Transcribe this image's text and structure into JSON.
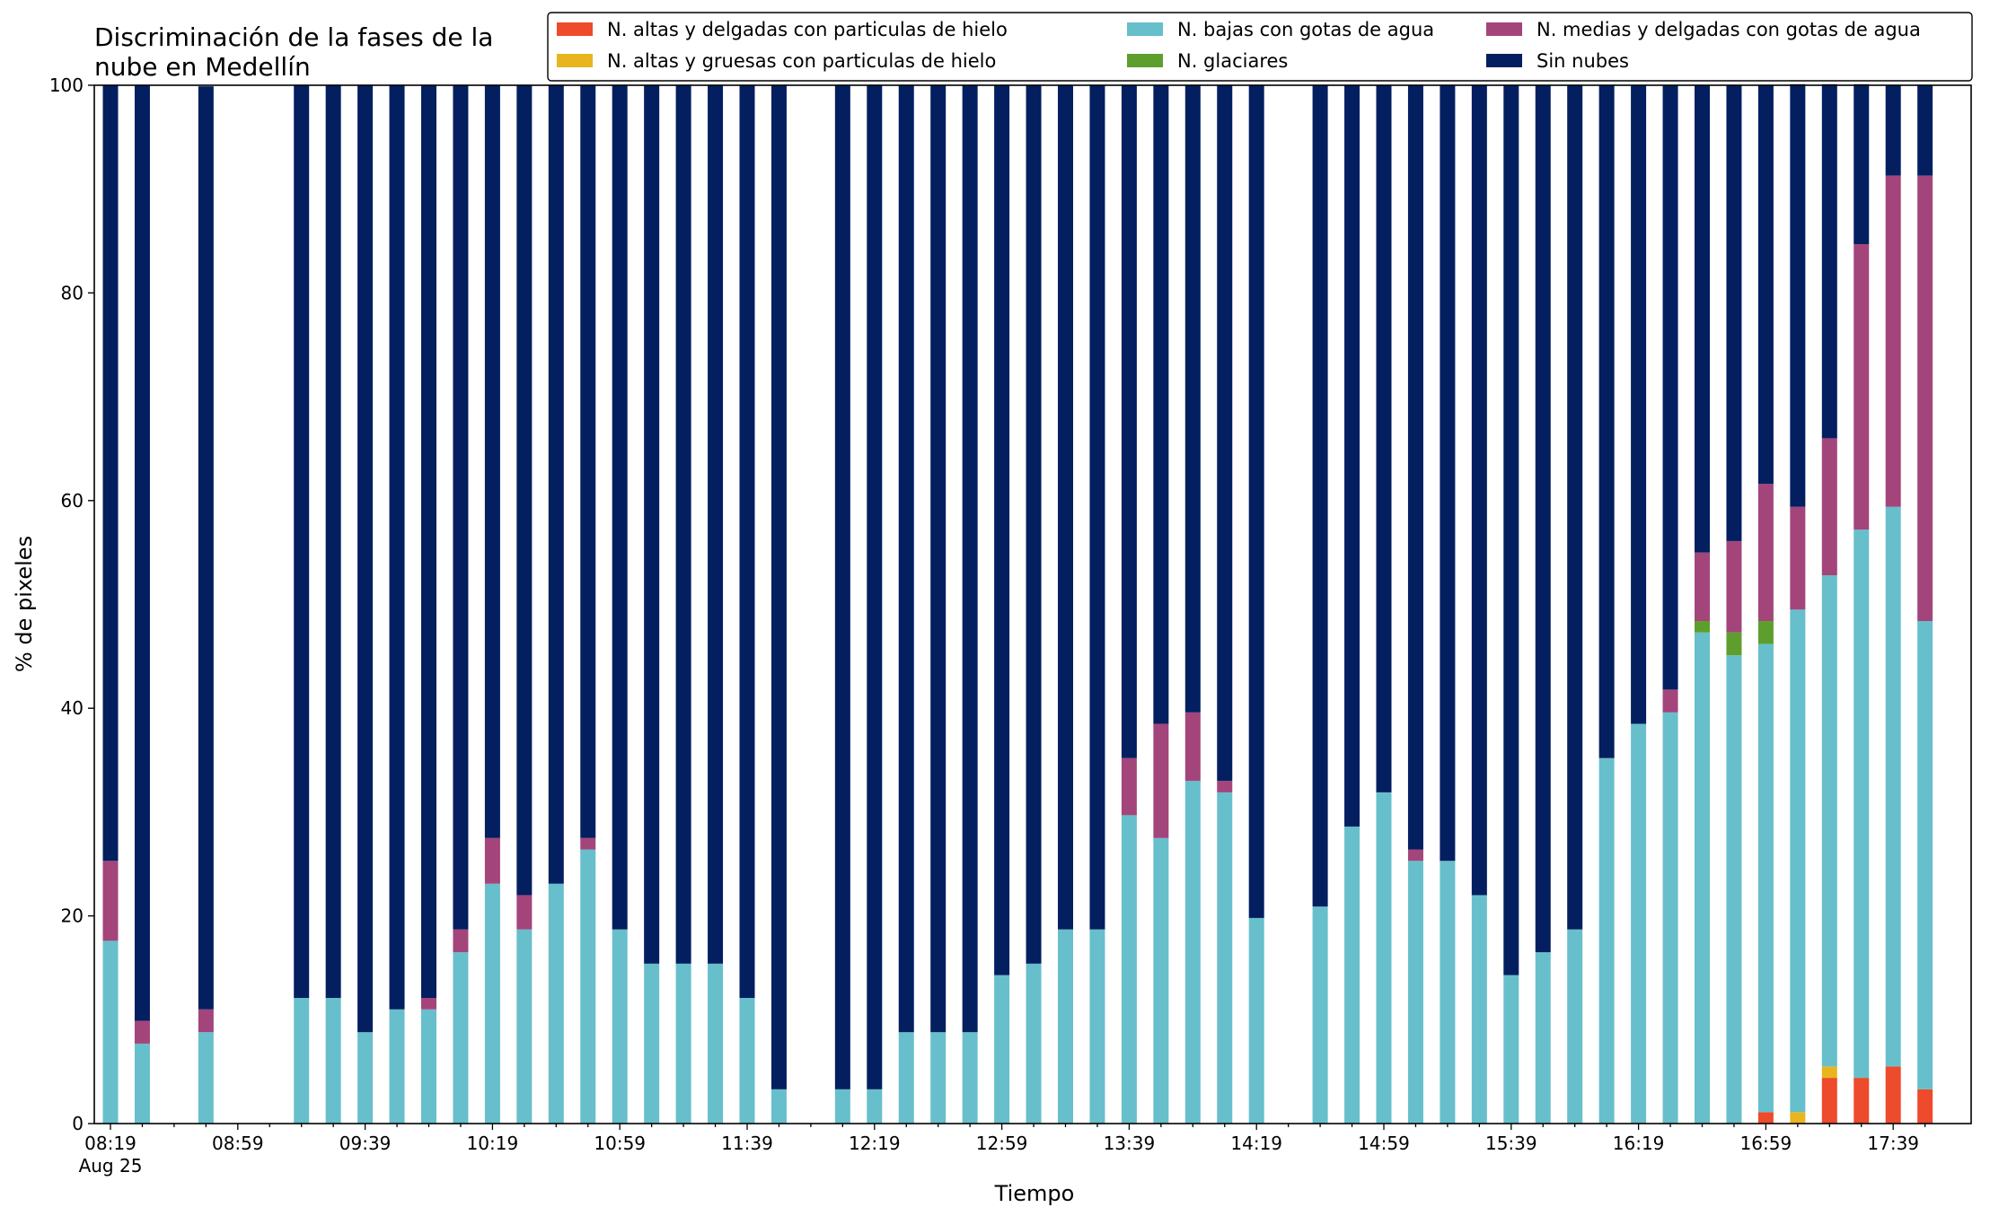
{
  "chart_data": {
    "type": "bar",
    "stacked": true,
    "title_lines": [
      "Discriminación de la fases de la",
      "nube en Medellín"
    ],
    "xlabel": "Tiempo",
    "ylabel": "% de pixeles",
    "ylim": [
      0,
      100
    ],
    "yticks": [
      "0",
      "20",
      "40",
      "60",
      "80",
      "100"
    ],
    "xtick_labels": [
      "08:19",
      "08:59",
      "09:39",
      "10:19",
      "10:59",
      "11:39",
      "12:19",
      "12:59",
      "13:39",
      "14:19",
      "14:59",
      "15:39",
      "16:19",
      "16:59",
      "17:39"
    ],
    "xtick_sub": "Aug 25",
    "grid": false,
    "legend_position": "top",
    "categories": [
      "08:19",
      "08:29",
      "08:39",
      "08:49",
      "08:59",
      "09:09",
      "09:19",
      "09:29",
      "09:39",
      "09:49",
      "09:59",
      "10:09",
      "10:19",
      "10:29",
      "10:39",
      "10:49",
      "10:59",
      "11:09",
      "11:19",
      "11:29",
      "11:39",
      "11:49",
      "11:59",
      "12:09",
      "12:19",
      "12:29",
      "12:39",
      "12:49",
      "12:59",
      "13:09",
      "13:19",
      "13:29",
      "13:39",
      "13:49",
      "13:59",
      "14:09",
      "14:19",
      "14:29",
      "14:39",
      "14:49",
      "14:59",
      "15:09",
      "15:19",
      "15:29",
      "15:39",
      "15:49",
      "15:59",
      "16:09",
      "16:19",
      "16:29",
      "16:39",
      "16:49",
      "16:59",
      "17:09",
      "17:19",
      "17:29",
      "17:39",
      "17:49"
    ],
    "series": [
      {
        "name": "N. altas y delgadas con particulas de hielo",
        "color": "#ee4a2c",
        "values": [
          0,
          0,
          null,
          0,
          null,
          null,
          0,
          0,
          0,
          0,
          0,
          0,
          0,
          0,
          0,
          0,
          0,
          0,
          0,
          0,
          0,
          0,
          null,
          0,
          0,
          0,
          0,
          0,
          0,
          0,
          0,
          0,
          0,
          0,
          0,
          0,
          0,
          null,
          0,
          0,
          0,
          0,
          0,
          0,
          0,
          0,
          0,
          0,
          0,
          0,
          0,
          0,
          1.1,
          0,
          4.4,
          4.4,
          5.5,
          3.3
        ]
      },
      {
        "name": "N. altas y gruesas con particulas de hielo",
        "color": "#e8b51f",
        "values": [
          0,
          0,
          null,
          0,
          null,
          null,
          0,
          0,
          0,
          0,
          0,
          0,
          0,
          0,
          0,
          0,
          0,
          0,
          0,
          0,
          0,
          0,
          null,
          0,
          0,
          0,
          0,
          0,
          0,
          0,
          0,
          0,
          0,
          0,
          0,
          0,
          0,
          null,
          0,
          0,
          0,
          0,
          0,
          0,
          0,
          0,
          0,
          0,
          0,
          0,
          0,
          0,
          0,
          1.1,
          1.1,
          0,
          0,
          0
        ]
      },
      {
        "name": "N. bajas con gotas de agua",
        "color": "#67bfcb",
        "values": [
          17.6,
          7.7,
          null,
          8.8,
          null,
          null,
          12.1,
          12.1,
          8.8,
          11.0,
          11.0,
          16.5,
          23.1,
          18.7,
          23.1,
          26.4,
          18.7,
          15.4,
          15.4,
          15.4,
          12.1,
          3.3,
          null,
          3.3,
          3.3,
          8.8,
          8.8,
          8.8,
          14.3,
          15.4,
          18.7,
          18.7,
          29.7,
          27.5,
          33.0,
          31.9,
          19.8,
          null,
          20.9,
          28.6,
          31.9,
          25.3,
          25.3,
          22.0,
          14.3,
          16.5,
          18.7,
          35.2,
          38.5,
          39.6,
          47.3,
          45.1,
          45.1,
          48.4,
          47.3,
          52.8,
          53.9,
          45.1
        ]
      },
      {
        "name": "N. glaciares",
        "color": "#5e9e2c",
        "values": [
          0,
          0,
          null,
          0,
          null,
          null,
          0,
          0,
          0,
          0,
          0,
          0,
          0,
          0,
          0,
          0,
          0,
          0,
          0,
          0,
          0,
          0,
          null,
          0,
          0,
          0,
          0,
          0,
          0,
          0,
          0,
          0,
          0,
          0,
          0,
          0,
          0,
          null,
          0,
          0,
          0,
          0,
          0,
          0,
          0,
          0,
          0,
          0,
          0,
          0,
          1.1,
          2.2,
          2.2,
          0,
          0,
          0,
          0,
          0
        ]
      },
      {
        "name": "N. medias y delgadas con gotas de agua",
        "color": "#a3457b",
        "values": [
          7.7,
          2.2,
          null,
          2.2,
          null,
          null,
          0,
          0,
          0,
          0,
          1.1,
          2.2,
          4.4,
          3.3,
          0,
          1.1,
          0,
          0,
          0,
          0,
          0,
          0,
          null,
          0,
          0,
          0,
          0,
          0,
          0,
          0,
          0,
          0,
          5.5,
          11.0,
          6.6,
          1.1,
          0,
          null,
          0,
          0,
          0,
          1.1,
          0,
          0,
          0,
          0,
          0,
          0,
          0,
          2.2,
          6.6,
          8.8,
          13.2,
          9.9,
          13.2,
          27.5,
          31.9,
          42.9
        ]
      },
      {
        "name": "Sin nubes",
        "color": "#031f60",
        "values": [
          74.7,
          90.1,
          null,
          88.9,
          null,
          null,
          87.9,
          87.9,
          91.2,
          89.0,
          87.9,
          81.3,
          72.5,
          78.0,
          76.9,
          72.5,
          81.3,
          84.6,
          84.6,
          84.6,
          87.9,
          96.7,
          null,
          96.7,
          96.7,
          91.2,
          91.2,
          91.2,
          85.7,
          84.6,
          81.3,
          81.3,
          64.8,
          61.5,
          60.4,
          67.0,
          80.2,
          null,
          79.1,
          71.4,
          68.1,
          73.6,
          74.7,
          78.0,
          85.7,
          83.5,
          81.3,
          64.8,
          61.5,
          58.2,
          45.0,
          43.9,
          38.4,
          40.7,
          34.1,
          15.4,
          8.7,
          8.7
        ]
      }
    ]
  }
}
